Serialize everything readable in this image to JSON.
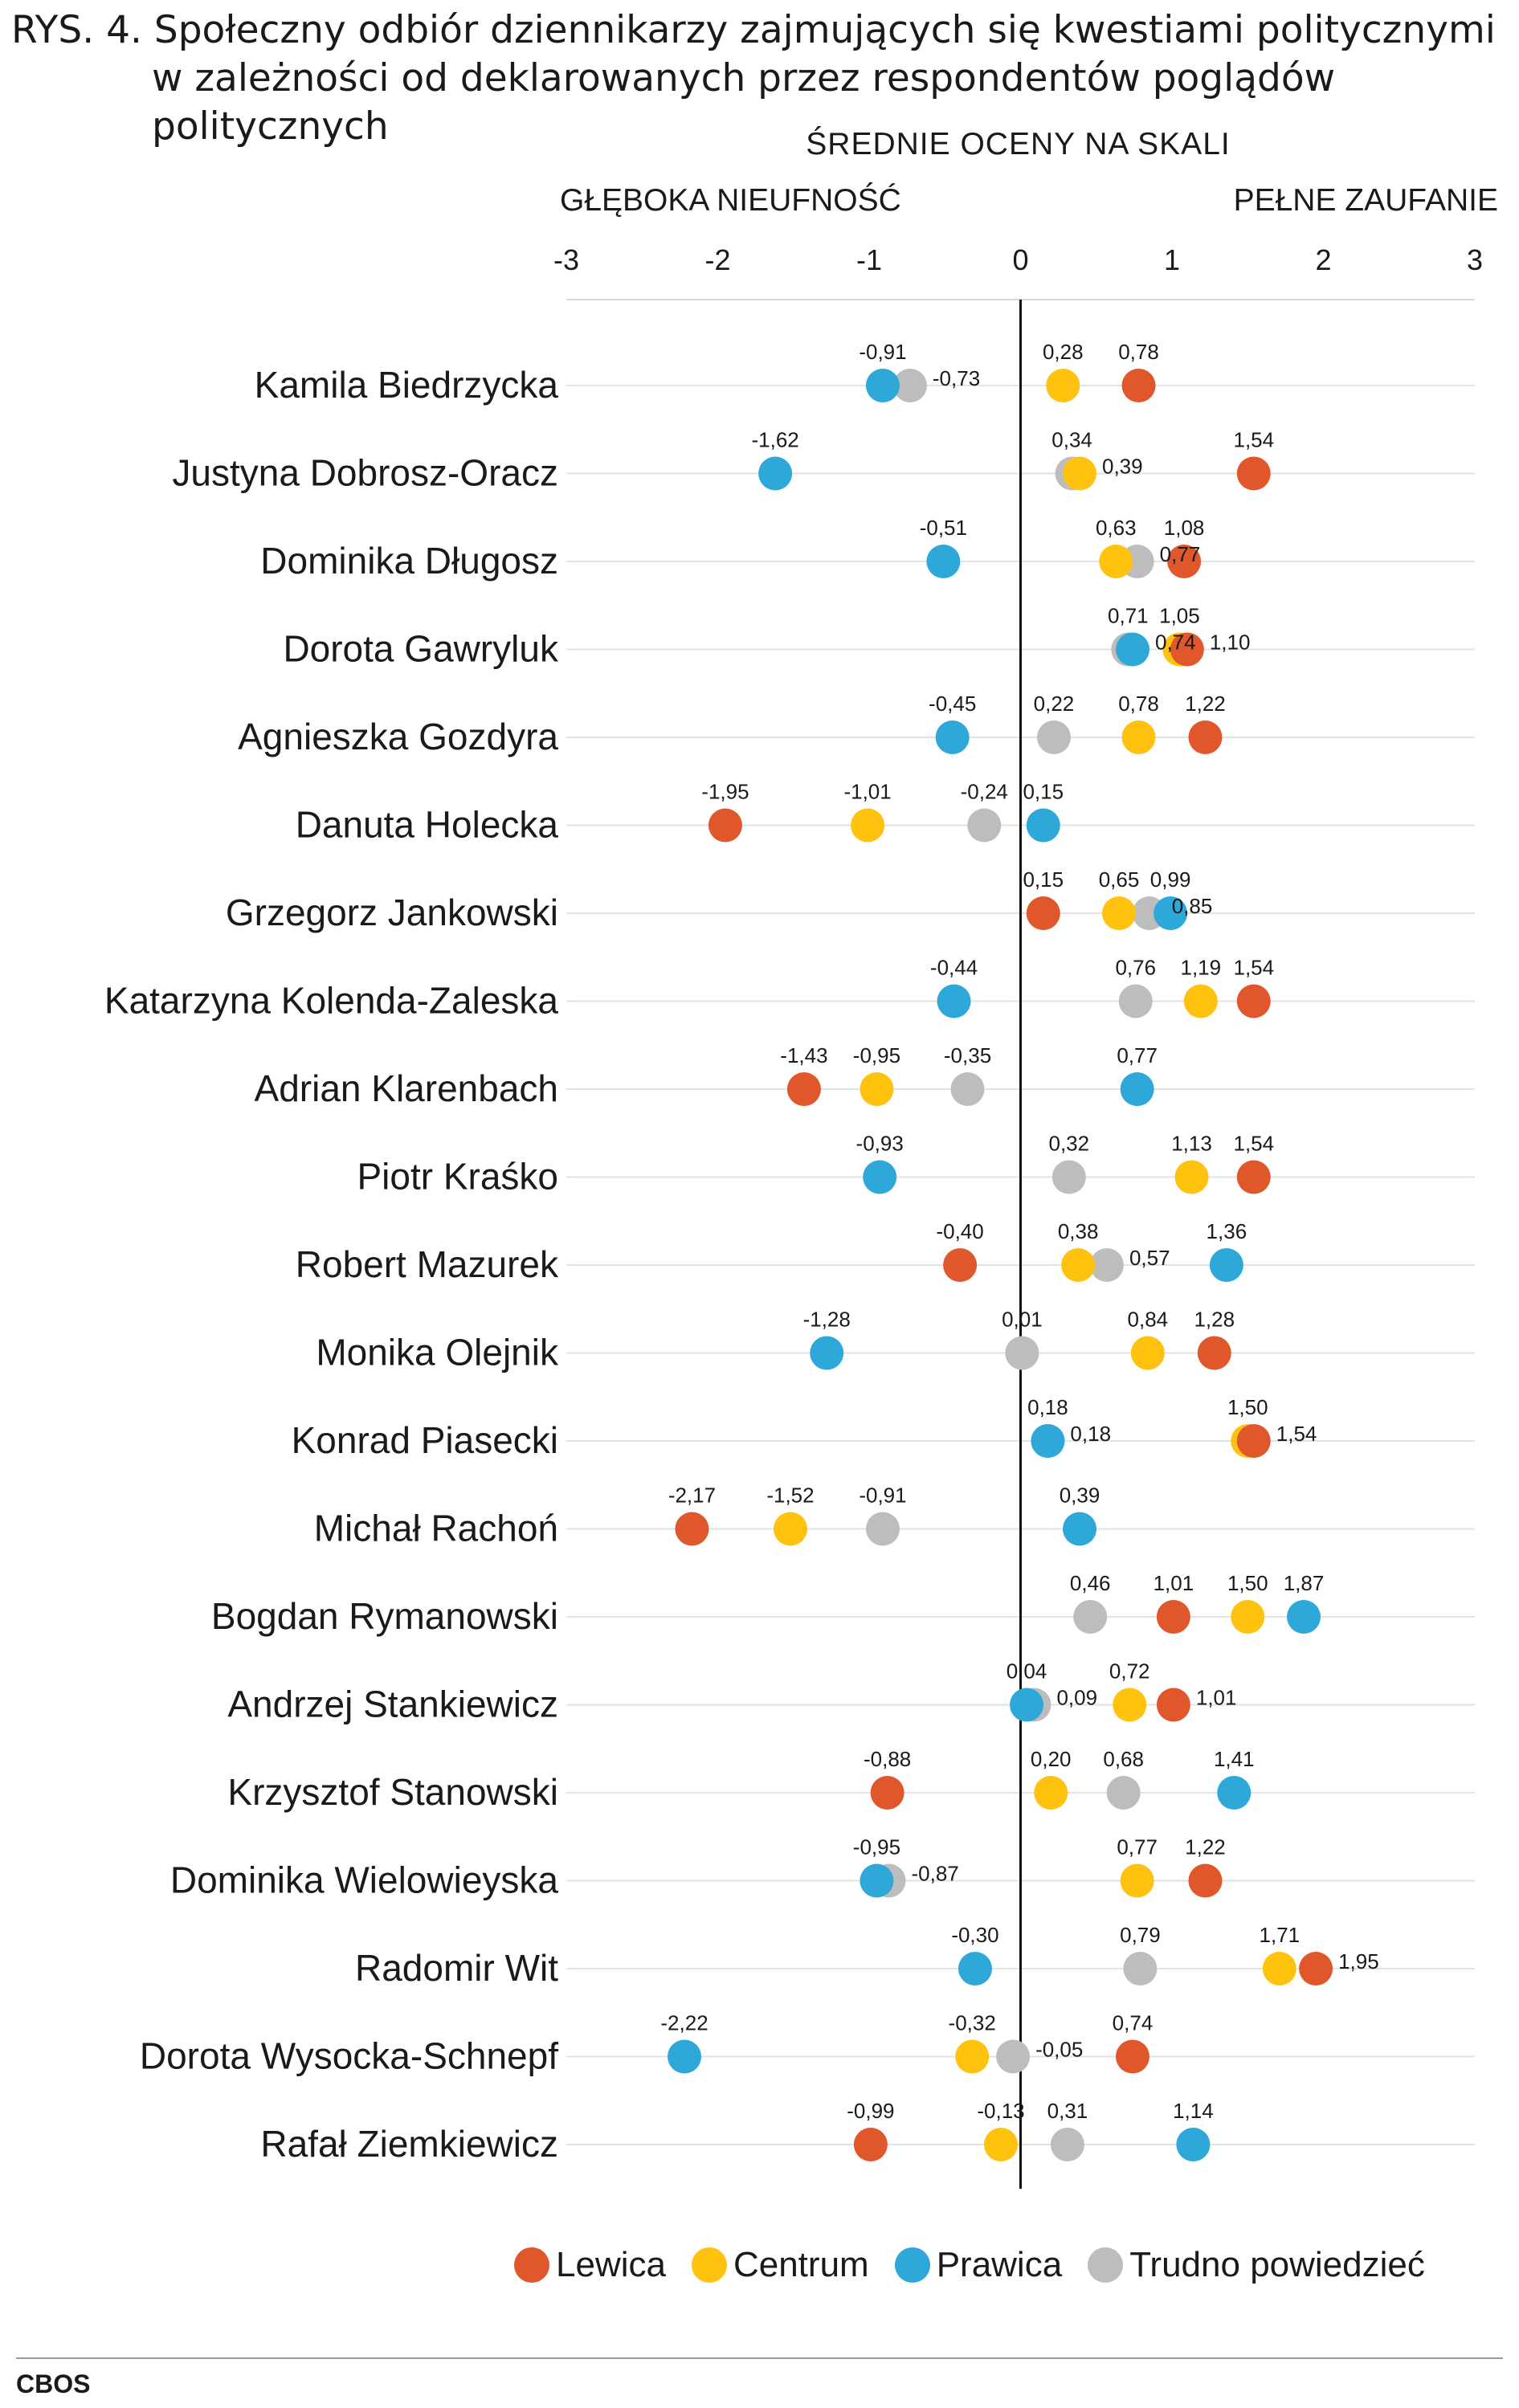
{
  "title_line1": "RYS. 4. Społeczny odbiór dziennikarzy zajmujących się kwestiami politycznymi",
  "title_line2": "w zależności od deklarowanych przez respondentów poglądów politycznych",
  "source": "CBOS",
  "colors": {
    "lewica": "#E0572B",
    "centrum": "#FFC20E",
    "prawica": "#2EA8D8",
    "trudno": "#BDBDBD"
  },
  "chart_data": {
    "type": "scatter",
    "title": "RYS. 4. Społeczny odbiór dziennikarzy zajmujących się kwestiami politycznymi w zależności od deklarowanych przez respondentów poglądów politycznych",
    "xlabel": "ŚREDNIE OCENY NA SKALI",
    "x_left_label": "GŁĘBOKA NIEUFNOŚĆ",
    "x_right_label": "PEŁNE ZAUFANIE",
    "xlim": [
      -3,
      3
    ],
    "xticks": [
      "-3",
      "-2",
      "-1",
      "0",
      "1",
      "2",
      "3"
    ],
    "legend_position": "bottom",
    "grid": true,
    "series": [
      {
        "key": "lewica",
        "name": "Lewica",
        "color": "#E0572B"
      },
      {
        "key": "centrum",
        "name": "Centrum",
        "color": "#FFC20E"
      },
      {
        "key": "prawica",
        "name": "Prawica",
        "color": "#2EA8D8"
      },
      {
        "key": "trudno",
        "name": "Trudno powiedzieć",
        "color": "#BDBDBD"
      }
    ],
    "categories": [
      "Kamila Biedrzycka",
      "Justyna Dobrosz-Oracz",
      "Dominika Długosz",
      "Dorota Gawryluk",
      "Agnieszka Gozdyra",
      "Danuta Holecka",
      "Grzegorz Jankowski",
      "Katarzyna Kolenda-Zaleska",
      "Adrian Klarenbach",
      "Piotr Kraśko",
      "Robert Mazurek",
      "Monika Olejnik",
      "Konrad Piasecki",
      "Michał Rachoń",
      "Bogdan Rymanowski",
      "Andrzej Stankiewicz",
      "Krzysztof Stanowski",
      "Dominika Wielowieyska",
      "Radomir Wit",
      "Dorota Wysocka-Schnepf",
      "Rafał Ziemkiewicz"
    ],
    "rows": [
      {
        "lewica": {
          "v": 0.78,
          "t": "0,78"
        },
        "centrum": {
          "v": 0.28,
          "t": "0,28"
        },
        "prawica": {
          "v": -0.91,
          "t": "-0,91"
        },
        "trudno": {
          "v": -0.73,
          "t": "-0,73"
        }
      },
      {
        "lewica": {
          "v": 1.54,
          "t": "1,54"
        },
        "centrum": {
          "v": 0.39,
          "t": "0,39"
        },
        "prawica": {
          "v": -1.62,
          "t": "-1,62"
        },
        "trudno": {
          "v": 0.34,
          "t": "0,34"
        }
      },
      {
        "lewica": {
          "v": 1.08,
          "t": "1,08"
        },
        "centrum": {
          "v": 0.63,
          "t": "0,63"
        },
        "prawica": {
          "v": -0.51,
          "t": "-0,51"
        },
        "trudno": {
          "v": 0.77,
          "t": "0,77"
        }
      },
      {
        "lewica": {
          "v": 1.1,
          "t": "1,10"
        },
        "centrum": {
          "v": 1.05,
          "t": "1,05"
        },
        "prawica": {
          "v": 0.74,
          "t": "0,74"
        },
        "trudno": {
          "v": 0.71,
          "t": "0,71"
        }
      },
      {
        "lewica": {
          "v": 1.22,
          "t": "1,22"
        },
        "centrum": {
          "v": 0.78,
          "t": "0,78"
        },
        "prawica": {
          "v": -0.45,
          "t": "-0,45"
        },
        "trudno": {
          "v": 0.22,
          "t": "0,22"
        }
      },
      {
        "lewica": {
          "v": -1.95,
          "t": "-1,95"
        },
        "centrum": {
          "v": -1.01,
          "t": "-1,01"
        },
        "prawica": {
          "v": 0.15,
          "t": "0,15"
        },
        "trudno": {
          "v": -0.24,
          "t": "-0,24"
        }
      },
      {
        "lewica": {
          "v": 0.15,
          "t": "0,15"
        },
        "centrum": {
          "v": 0.65,
          "t": "0,65"
        },
        "prawica": {
          "v": 0.99,
          "t": "0,99"
        },
        "trudno": {
          "v": 0.85,
          "t": "0,85"
        }
      },
      {
        "lewica": {
          "v": 1.54,
          "t": "1,54"
        },
        "centrum": {
          "v": 1.19,
          "t": "1,19"
        },
        "prawica": {
          "v": -0.44,
          "t": "-0,44"
        },
        "trudno": {
          "v": 0.76,
          "t": "0,76"
        }
      },
      {
        "lewica": {
          "v": -1.43,
          "t": "-1,43"
        },
        "centrum": {
          "v": -0.95,
          "t": "-0,95"
        },
        "prawica": {
          "v": 0.77,
          "t": "0,77"
        },
        "trudno": {
          "v": -0.35,
          "t": "-0,35"
        }
      },
      {
        "lewica": {
          "v": 1.54,
          "t": "1,54"
        },
        "centrum": {
          "v": 1.13,
          "t": "1,13"
        },
        "prawica": {
          "v": -0.93,
          "t": "-0,93"
        },
        "trudno": {
          "v": 0.32,
          "t": "0,32"
        }
      },
      {
        "lewica": {
          "v": -0.4,
          "t": "-0,40"
        },
        "centrum": {
          "v": 0.38,
          "t": "0,38"
        },
        "prawica": {
          "v": 1.36,
          "t": "1,36"
        },
        "trudno": {
          "v": 0.57,
          "t": "0,57"
        }
      },
      {
        "lewica": {
          "v": 1.28,
          "t": "1,28"
        },
        "centrum": {
          "v": 0.84,
          "t": "0,84"
        },
        "prawica": {
          "v": -1.28,
          "t": "-1,28"
        },
        "trudno": {
          "v": 0.01,
          "t": "0,01"
        }
      },
      {
        "lewica": {
          "v": 1.54,
          "t": "1,54"
        },
        "centrum": {
          "v": 1.5,
          "t": "1,50"
        },
        "prawica": {
          "v": 0.18,
          "t": "0,18"
        },
        "trudno": {
          "v": 0.18,
          "t": "0,18"
        }
      },
      {
        "lewica": {
          "v": -2.17,
          "t": "-2,17"
        },
        "centrum": {
          "v": -1.52,
          "t": "-1,52"
        },
        "prawica": {
          "v": 0.39,
          "t": "0,39"
        },
        "trudno": {
          "v": -0.91,
          "t": "-0,91"
        }
      },
      {
        "lewica": {
          "v": 1.01,
          "t": "1,01"
        },
        "centrum": {
          "v": 1.5,
          "t": "1,50"
        },
        "prawica": {
          "v": 1.87,
          "t": "1,87"
        },
        "trudno": {
          "v": 0.46,
          "t": "0,46"
        }
      },
      {
        "lewica": {
          "v": 1.01,
          "t": "1,01"
        },
        "centrum": {
          "v": 0.72,
          "t": "0,72"
        },
        "prawica": {
          "v": 0.04,
          "t": "0,04"
        },
        "trudno": {
          "v": 0.09,
          "t": "0,09"
        }
      },
      {
        "lewica": {
          "v": -0.88,
          "t": "-0,88"
        },
        "centrum": {
          "v": 0.2,
          "t": "0,20"
        },
        "prawica": {
          "v": 1.41,
          "t": "1,41"
        },
        "trudno": {
          "v": 0.68,
          "t": "0,68"
        }
      },
      {
        "lewica": {
          "v": 1.22,
          "t": "1,22"
        },
        "centrum": {
          "v": 0.77,
          "t": "0,77"
        },
        "prawica": {
          "v": -0.95,
          "t": "-0,95"
        },
        "trudno": {
          "v": -0.87,
          "t": "-0,87"
        }
      },
      {
        "lewica": {
          "v": 1.95,
          "t": "1,95"
        },
        "centrum": {
          "v": 1.71,
          "t": "1,71"
        },
        "prawica": {
          "v": -0.3,
          "t": "-0,30"
        },
        "trudno": {
          "v": 0.79,
          "t": "0,79"
        }
      },
      {
        "lewica": {
          "v": 0.74,
          "t": "0,74"
        },
        "centrum": {
          "v": -0.32,
          "t": "-0,32"
        },
        "prawica": {
          "v": -2.22,
          "t": "-2,22"
        },
        "trudno": {
          "v": -0.05,
          "t": "-0,05"
        }
      },
      {
        "lewica": {
          "v": -0.99,
          "t": "-0,99"
        },
        "centrum": {
          "v": -0.13,
          "t": "-0,13"
        },
        "prawica": {
          "v": 1.14,
          "t": "1,14"
        },
        "trudno": {
          "v": 0.31,
          "t": "0,31"
        }
      }
    ]
  }
}
